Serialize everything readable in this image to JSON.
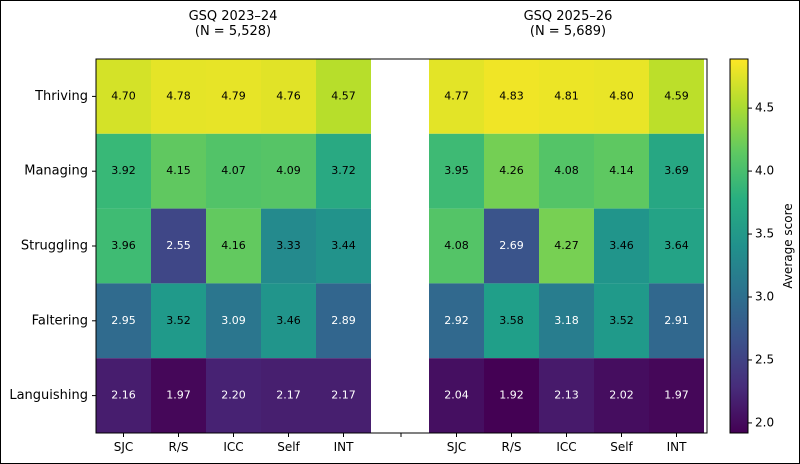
{
  "chart_data": {
    "type": "heatmap",
    "rows": [
      "Thriving",
      "Managing",
      "Struggling",
      "Faltering",
      "Languishing"
    ],
    "columns": [
      "SJC",
      "R/S",
      "ICC",
      "Self",
      "INT"
    ],
    "panels": [
      {
        "title_line1": "GSQ 2023–24",
        "title_line2": "(N = 5,528)",
        "values": [
          [
            4.7,
            4.78,
            4.79,
            4.76,
            4.57
          ],
          [
            3.92,
            4.15,
            4.07,
            4.09,
            3.72
          ],
          [
            3.96,
            2.55,
            4.16,
            3.33,
            3.44
          ],
          [
            2.95,
            3.52,
            3.09,
            3.46,
            2.89
          ],
          [
            2.16,
            1.97,
            2.2,
            2.17,
            2.17
          ]
        ]
      },
      {
        "title_line1": "GSQ 2025–26",
        "title_line2": "(N = 5,689)",
        "values": [
          [
            4.77,
            4.83,
            4.81,
            4.8,
            4.59
          ],
          [
            3.95,
            4.26,
            4.08,
            4.14,
            3.69
          ],
          [
            4.08,
            2.69,
            4.27,
            3.46,
            3.64
          ],
          [
            2.92,
            3.58,
            3.18,
            3.52,
            2.91
          ],
          [
            2.04,
            1.92,
            2.13,
            2.02,
            1.97
          ]
        ]
      }
    ],
    "colormap": "viridis",
    "vmin": 1.92,
    "vmax": 4.89,
    "colorbar": {
      "label": "Average score",
      "ticks": [
        "2.0",
        "2.5",
        "3.0",
        "3.5",
        "4.0",
        "4.5"
      ],
      "tick_values": [
        2.0,
        2.5,
        3.0,
        3.5,
        4.0,
        4.5
      ]
    }
  }
}
